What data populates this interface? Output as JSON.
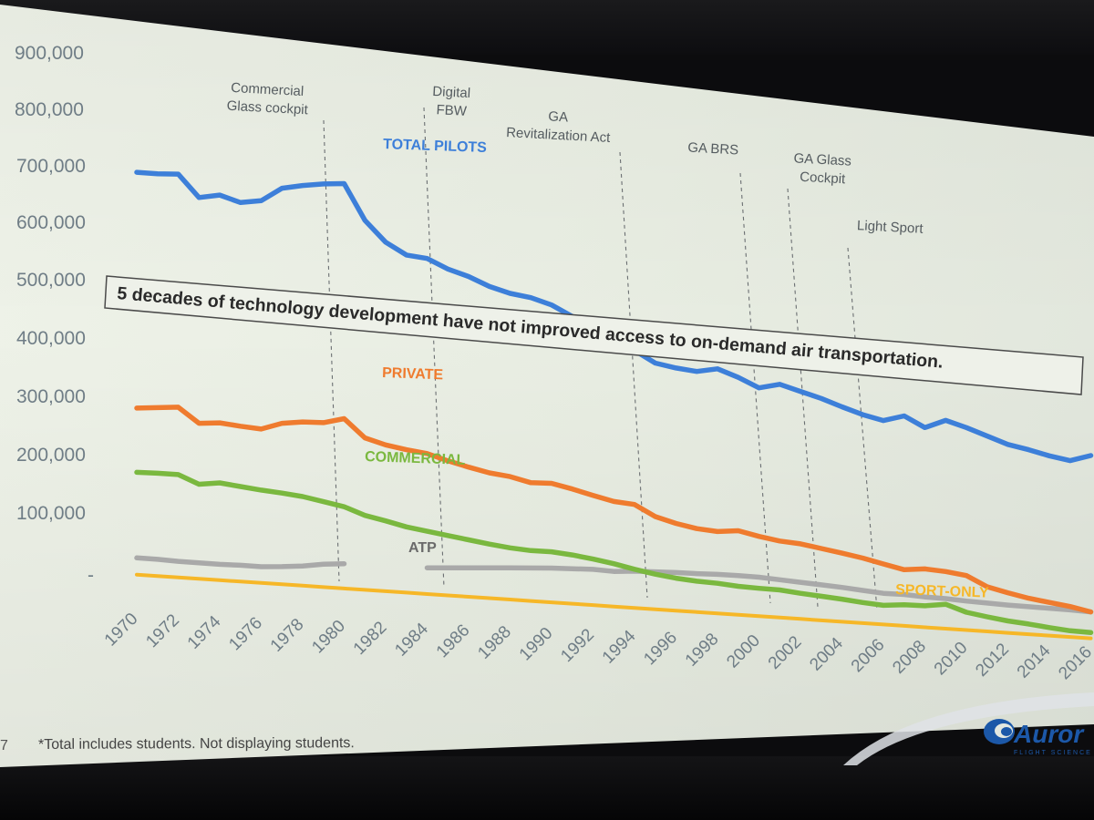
{
  "chart_data": {
    "type": "line",
    "title": "",
    "xlabel": "",
    "ylabel": "",
    "ylim": [
      0,
      900000
    ],
    "y_ticks": [
      "-",
      "100,000",
      "200,000",
      "300,000",
      "400,000",
      "500,000",
      "600,000",
      "700,000",
      "800,000",
      "900,000"
    ],
    "y_tick_values": [
      0,
      100000,
      200000,
      300000,
      400000,
      500000,
      600000,
      700000,
      800000,
      900000
    ],
    "x": [
      1970,
      1971,
      1972,
      1973,
      1974,
      1975,
      1976,
      1977,
      1978,
      1979,
      1980,
      1981,
      1982,
      1983,
      1984,
      1985,
      1986,
      1987,
      1988,
      1989,
      1990,
      1991,
      1992,
      1993,
      1994,
      1995,
      1996,
      1997,
      1998,
      1999,
      2000,
      2001,
      2002,
      2003,
      2004,
      2005,
      2006,
      2007,
      2008,
      2009,
      2010,
      2011,
      2012,
      2013,
      2014,
      2015,
      2016
    ],
    "x_tick_labels": [
      "1970",
      "1972",
      "1974",
      "1976",
      "1978",
      "1980",
      "1982",
      "1984",
      "1986",
      "1988",
      "1990",
      "1992",
      "1994",
      "1996",
      "1998",
      "2000",
      "2002",
      "2004",
      "2006",
      "2008",
      "2010",
      "2012",
      "2014",
      "2016"
    ],
    "grid": false,
    "series": [
      {
        "name": "TOTAL PILOTS",
        "color": "#3d7fd9",
        "values": [
          720000,
          724000,
          730000,
          694000,
          705000,
          698000,
          708000,
          738000,
          750000,
          760000,
          768000,
          705000,
          670000,
          652000,
          652000,
          638000,
          630000,
          617000,
          610000,
          608000,
          600000,
          583000,
          568000,
          551000,
          533000,
          513000,
          509000,
          508000,
          520000,
          508000,
          492000,
          506000,
          497000,
          488000,
          476000,
          465000,
          458000,
          475000,
          455000,
          478000,
          468000,
          455000,
          442000,
          436000,
          428000,
          423000,
          442000
        ]
      },
      {
        "name": "PRIVATE",
        "color": "#ef7b2e",
        "values": [
          298000,
          303000,
          308000,
          283000,
          288000,
          286000,
          285000,
          300000,
          307000,
          310000,
          322000,
          290000,
          281000,
          276000,
          273000,
          263000,
          255000,
          248000,
          245000,
          237000,
          240000,
          233000,
          224000,
          216000,
          214000,
          193000,
          183000,
          176000,
          174000,
          180000,
          172000,
          166000,
          164000,
          158000,
          152000,
          145000,
          136000,
          127000,
          133000,
          131000,
          126000,
          104000,
          94000,
          85000,
          79000,
          73000,
          64000
        ]
      },
      {
        "name": "COMMERCIAL",
        "color": "#7ab83f",
        "values": [
          183000,
          185000,
          186000,
          172000,
          178000,
          175000,
          172000,
          170000,
          167000,
          161000,
          155000,
          142000,
          135000,
          127000,
          122000,
          117000,
          112000,
          107000,
          103000,
          101000,
          102000,
          99000,
          94000,
          88000,
          80000,
          73000,
          68000,
          65000,
          64000,
          61000,
          60000,
          60000,
          56000,
          53000,
          50000,
          46000,
          43000,
          48000,
          49000,
          56000,
          41000,
          34000,
          28000,
          24000,
          19000,
          15000,
          14000
        ]
      },
      {
        "name": "ATP",
        "color": "#a9a9a9",
        "values": [
          30000,
          30000,
          29000,
          29000,
          29000,
          30000,
          30000,
          33000,
          37000,
          43000,
          47000,
          null,
          null,
          null,
          51000,
          54000,
          57000,
          60000,
          63000,
          66000,
          69000,
          71000,
          73000,
          72000,
          76000,
          78000,
          80000,
          81000,
          83000,
          84000,
          84000,
          82000,
          80000,
          78000,
          76000,
          73000,
          70000,
          71000,
          69000,
          69000,
          67000,
          66000,
          65000,
          65000,
          65000,
          65000,
          64000
        ]
      },
      {
        "name": "SPORT-ONLY",
        "color": "#f6b728",
        "values": [
          0,
          0,
          0,
          0,
          0,
          0,
          0,
          0,
          0,
          0,
          0,
          0,
          0,
          0,
          0,
          0,
          0,
          0,
          0,
          0,
          0,
          0,
          0,
          0,
          0,
          0,
          0,
          0,
          0,
          0,
          0,
          0,
          0,
          0,
          0,
          0,
          0,
          0,
          0,
          0,
          0,
          0,
          0,
          0,
          0,
          0,
          0
        ]
      }
    ],
    "annotations": {
      "events": [
        {
          "year": 1979,
          "lines": [
            "Commercial",
            "Glass cockpit"
          ]
        },
        {
          "year": 1983,
          "lines": [
            "Digital",
            "FBW"
          ]
        },
        {
          "year": 1992,
          "lines": [
            "GA",
            "Revitalization Act"
          ]
        },
        {
          "year": 1998,
          "lines": [
            "GA BRS"
          ]
        },
        {
          "year": 2002,
          "lines": [
            "GA Glass",
            "Cockpit"
          ]
        },
        {
          "year": 2005,
          "lines": [
            "Light Sport"
          ]
        }
      ],
      "banner": "5 decades of technology development have not improved access to on-demand air transportation.",
      "footnote": "*Total includes students. Not displaying students.",
      "slide_number": "7"
    }
  },
  "logo": {
    "brand": "Auror",
    "tagline": "FLIGHT SCIENCE"
  }
}
